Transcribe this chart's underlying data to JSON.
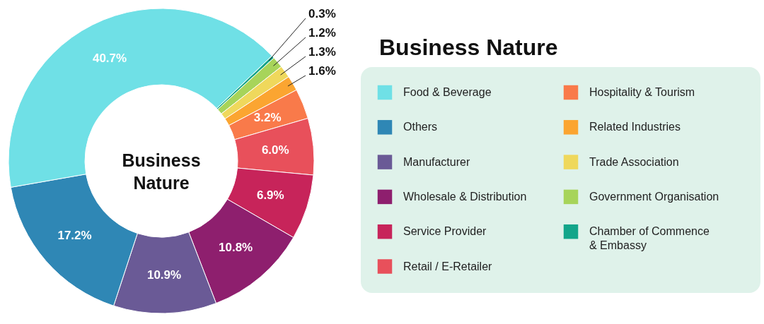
{
  "chart_data": {
    "type": "donut",
    "title": "Business Nature",
    "annotations": [
      "Business Nature"
    ],
    "categories": [
      "Food & Beverage",
      "Others",
      "Manufacturer",
      "Wholesale & Distribution",
      "Service Provider",
      "Retail / E-Retailer",
      "Hospitality & Tourism",
      "Related Industries",
      "Trade Association",
      "Government Organisation",
      "Chamber of Commence & Embassy"
    ],
    "values": [
      40.7,
      17.2,
      10.9,
      10.8,
      6.9,
      6.0,
      3.2,
      1.6,
      1.3,
      1.2,
      0.3
    ],
    "colors": [
      "#6fe0e6",
      "#2f87b5",
      "#6a5a96",
      "#8e1f6e",
      "#c7245a",
      "#e8505b",
      "#f97a4a",
      "#fba531",
      "#efd85c",
      "#a7d45a",
      "#13a58a"
    ],
    "value_labels": [
      "40.7%",
      "17.2%",
      "10.9%",
      "10.8%",
      "6.9%",
      "6.0%",
      "3.2%",
      "1.6%",
      "1.3%",
      "1.2%",
      "0.3%"
    ],
    "legend": "right"
  }
}
